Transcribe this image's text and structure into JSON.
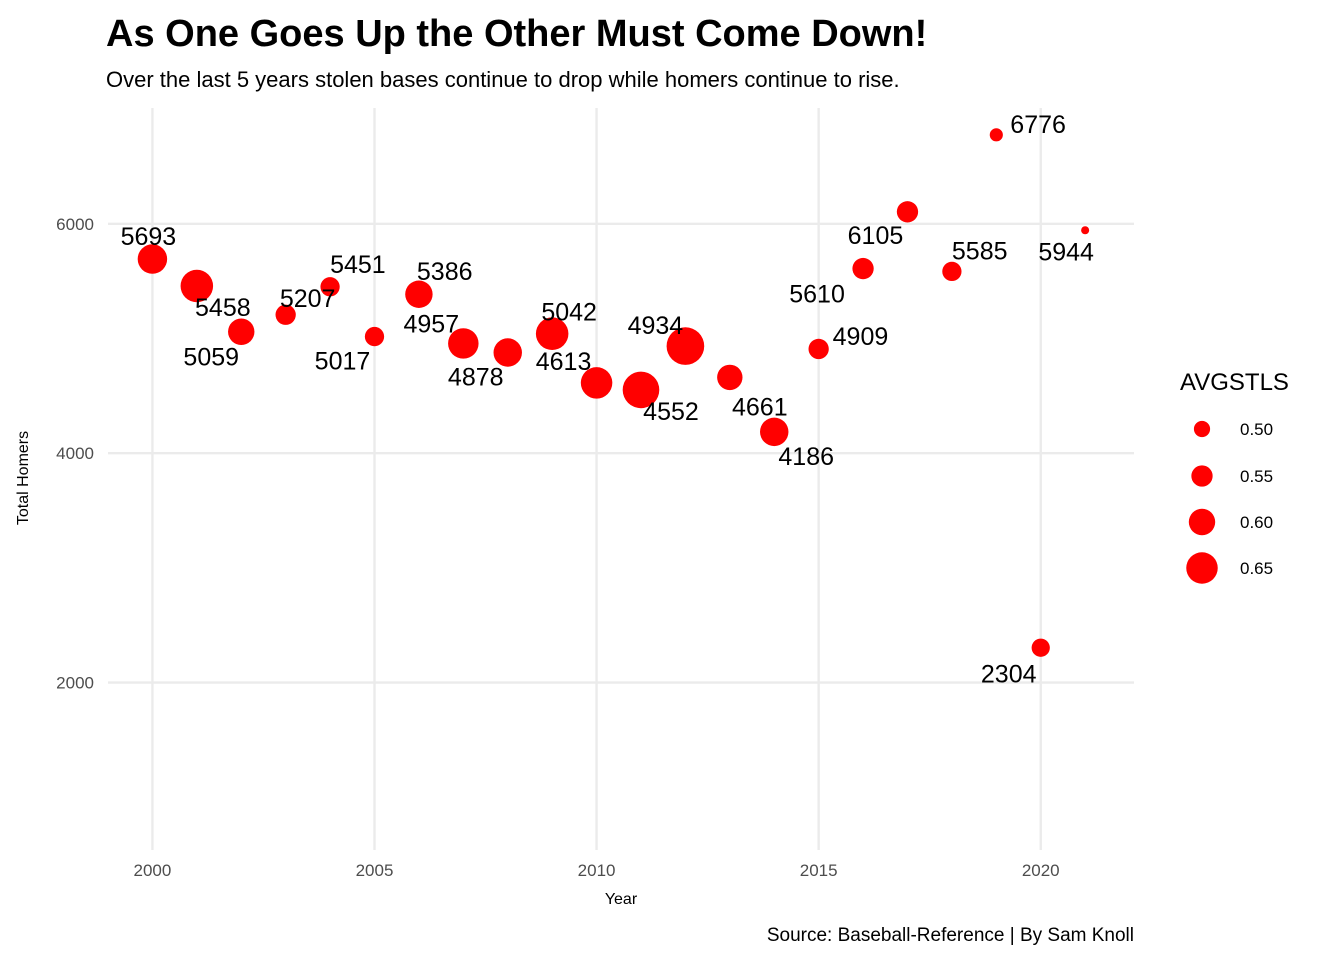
{
  "chart_data": {
    "type": "scatter",
    "title": "As One Goes Up the Other Must Come Down!",
    "subtitle": "Over the last 5 years stolen bases continue to drop while homers continue to rise.",
    "caption": "Source: Baseball-Reference | By Sam Knoll",
    "xlabel": "Year",
    "ylabel": "Total Homers",
    "xlim": [
      1999,
      2022.1
    ],
    "ylim": [
      540,
      7010
    ],
    "x_ticks": [
      2000,
      2005,
      2010,
      2015,
      2020
    ],
    "y_ticks": [
      2000,
      4000,
      6000
    ],
    "grid": true,
    "point_color": "#ff0000",
    "size_legend": {
      "title": "AVGSTLS",
      "placement": "right",
      "values": [
        0.5,
        0.55,
        0.6,
        0.65
      ],
      "labels": [
        "0.50",
        "0.55",
        "0.60",
        "0.65"
      ]
    },
    "points": [
      {
        "year": 2000,
        "homers": 5693,
        "avgstls": 0.63,
        "label": "5693"
      },
      {
        "year": 2001,
        "homers": 5458,
        "avgstls": 0.66,
        "label": "5458"
      },
      {
        "year": 2002,
        "homers": 5059,
        "avgstls": 0.6,
        "label": "5059"
      },
      {
        "year": 2003,
        "homers": 5207,
        "avgstls": 0.54,
        "label": "5207"
      },
      {
        "year": 2004,
        "homers": 5451,
        "avgstls": 0.53,
        "label": "5451"
      },
      {
        "year": 2005,
        "homers": 5017,
        "avgstls": 0.53,
        "label": "5017"
      },
      {
        "year": 2006,
        "homers": 5386,
        "avgstls": 0.61,
        "label": "5386"
      },
      {
        "year": 2007,
        "homers": 4957,
        "avgstls": 0.64,
        "label": "4957"
      },
      {
        "year": 2008,
        "homers": 4878,
        "avgstls": 0.62,
        "label": "4878"
      },
      {
        "year": 2009,
        "homers": 5042,
        "avgstls": 0.66,
        "label": "5042"
      },
      {
        "year": 2010,
        "homers": 4613,
        "avgstls": 0.65,
        "label": "4613"
      },
      {
        "year": 2011,
        "homers": 4552,
        "avgstls": 0.7,
        "label": "4552"
      },
      {
        "year": 2012,
        "homers": 4934,
        "avgstls": 0.71,
        "label": "4934"
      },
      {
        "year": 2013,
        "homers": 4661,
        "avgstls": 0.59,
        "label": "4661"
      },
      {
        "year": 2014,
        "homers": 4186,
        "avgstls": 0.62,
        "label": "4186"
      },
      {
        "year": 2015,
        "homers": 4909,
        "avgstls": 0.54,
        "label": "4909"
      },
      {
        "year": 2016,
        "homers": 5610,
        "avgstls": 0.55,
        "label": "5610"
      },
      {
        "year": 2017,
        "homers": 6105,
        "avgstls": 0.55,
        "label": "6105"
      },
      {
        "year": 2018,
        "homers": 5585,
        "avgstls": 0.53,
        "label": "5585"
      },
      {
        "year": 2019,
        "homers": 6776,
        "avgstls": 0.47,
        "label": "6776"
      },
      {
        "year": 2020,
        "homers": 2304,
        "avgstls": 0.52,
        "label": "2304"
      },
      {
        "year": 2021,
        "homers": 5944,
        "avgstls": 0.42,
        "label": "5944"
      }
    ]
  }
}
